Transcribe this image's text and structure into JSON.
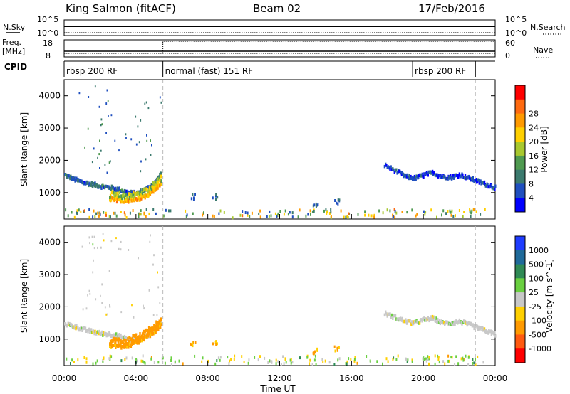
{
  "header": {
    "station": "King Salmon (fitACF)",
    "beam": "Beam 02",
    "date": "17/Feb/2016"
  },
  "status_labels": {
    "nsky": "N.Sky",
    "nsky_ticks": [
      "10^5",
      "10^0"
    ],
    "freq_line1": "Freq.",
    "freq_line2": "[MHz]",
    "freq_ticks": [
      "18",
      "8"
    ],
    "cpid": "CPID",
    "nsearch": "N.Search",
    "nsearch_ticks": [
      "10^5",
      "10^0"
    ],
    "nave": "Nave",
    "nave_ticks": [
      "60",
      "0"
    ]
  },
  "cpid_segments": [
    {
      "label": "rbsp 200 RF",
      "start_h": 0.0,
      "end_h": 5.5
    },
    {
      "label": "normal (fast) 151 RF",
      "start_h": 5.5,
      "end_h": 19.4
    },
    {
      "label": "rbsp 200 RF",
      "start_h": 19.4,
      "end_h": 22.9
    }
  ],
  "chart_data": [
    {
      "type": "heatmap",
      "name": "power",
      "ylabel": "Slant Range [km]",
      "xlabel": "Time UT",
      "xlim": [
        0,
        24
      ],
      "ylim": [
        180,
        4500
      ],
      "y_ticks": [
        "1000",
        "2000",
        "3000",
        "4000"
      ],
      "x_ticks": [
        "00:00",
        "04:00",
        "08:00",
        "12:00",
        "16:00",
        "20:00",
        "00:00"
      ],
      "colorbar": {
        "label": "Power [dB]",
        "ticks": [
          "4",
          "8",
          "12",
          "16",
          "20",
          "24",
          "28"
        ],
        "colors": [
          "#0000ff",
          "#1f4fbf",
          "#3b7a6e",
          "#4f9a50",
          "#a8c82e",
          "#ffd000",
          "#ff9a00",
          "#ff6a10",
          "#ff0000"
        ]
      },
      "tracks": [
        {
          "x": [
            0.0,
            0.5,
            1.0,
            1.5,
            2.0,
            2.5,
            3.0,
            3.5,
            4.0,
            4.5,
            5.0,
            5.4
          ],
          "y": [
            1550,
            1420,
            1320,
            1260,
            1200,
            1160,
            1100,
            1000,
            980,
            1100,
            1300,
            1600
          ],
          "value": 7
        },
        {
          "x": [
            2.5,
            3.0,
            3.5,
            4.0,
            4.5,
            5.0,
            5.4
          ],
          "y": [
            800,
            760,
            760,
            780,
            900,
            1100,
            1300
          ],
          "value": 22
        },
        {
          "x": [
            17.8,
            18.5,
            19.0,
            19.5,
            20.0,
            20.5,
            21.0,
            21.5,
            22.0,
            22.5,
            23.0,
            23.5,
            24.0
          ],
          "y": [
            1850,
            1650,
            1500,
            1450,
            1550,
            1620,
            1500,
            1480,
            1560,
            1450,
            1350,
            1250,
            1150
          ],
          "value": 5
        }
      ]
    },
    {
      "type": "heatmap",
      "name": "velocity",
      "ylabel": "Slant Range [km]",
      "xlabel": "Time UT",
      "xlim": [
        0,
        24
      ],
      "ylim": [
        180,
        4500
      ],
      "y_ticks": [
        "1000",
        "2000",
        "3000",
        "4000"
      ],
      "x_ticks": [
        "00:00",
        "04:00",
        "08:00",
        "12:00",
        "16:00",
        "20:00",
        "00:00"
      ],
      "colorbar": {
        "label": "Velocity [m s^-1]",
        "ticks": [
          "1000",
          "500",
          "100",
          "25",
          "-25",
          "-100",
          "-500",
          "-1000"
        ],
        "colors": [
          "#1e3cff",
          "#1f6a9a",
          "#2f8a55",
          "#6ad040",
          "#c8c8c8",
          "#ffd000",
          "#ff9a00",
          "#ff5a10",
          "#ff0000"
        ]
      },
      "tracks": [
        {
          "x": [
            0.0,
            0.5,
            1.0,
            1.5,
            2.0,
            2.5,
            3.0,
            3.5,
            4.0,
            4.5,
            5.0,
            5.4
          ],
          "y": [
            1480,
            1400,
            1300,
            1240,
            1180,
            1150,
            1100,
            1000,
            980,
            1080,
            1250,
            1550
          ],
          "value": 0
        },
        {
          "x": [
            2.5,
            3.0,
            3.5,
            4.0,
            4.5,
            5.0,
            5.4
          ],
          "y": [
            800,
            780,
            800,
            900,
            1050,
            1250,
            1450
          ],
          "value": -120
        },
        {
          "x": [
            17.8,
            18.5,
            19.0,
            19.5,
            20.0,
            20.5,
            21.0,
            21.5,
            22.0,
            22.5,
            23.0,
            23.5,
            24.0
          ],
          "y": [
            1800,
            1650,
            1550,
            1500,
            1600,
            1650,
            1500,
            1500,
            1550,
            1450,
            1350,
            1250,
            1150
          ],
          "value": 0
        }
      ]
    }
  ]
}
